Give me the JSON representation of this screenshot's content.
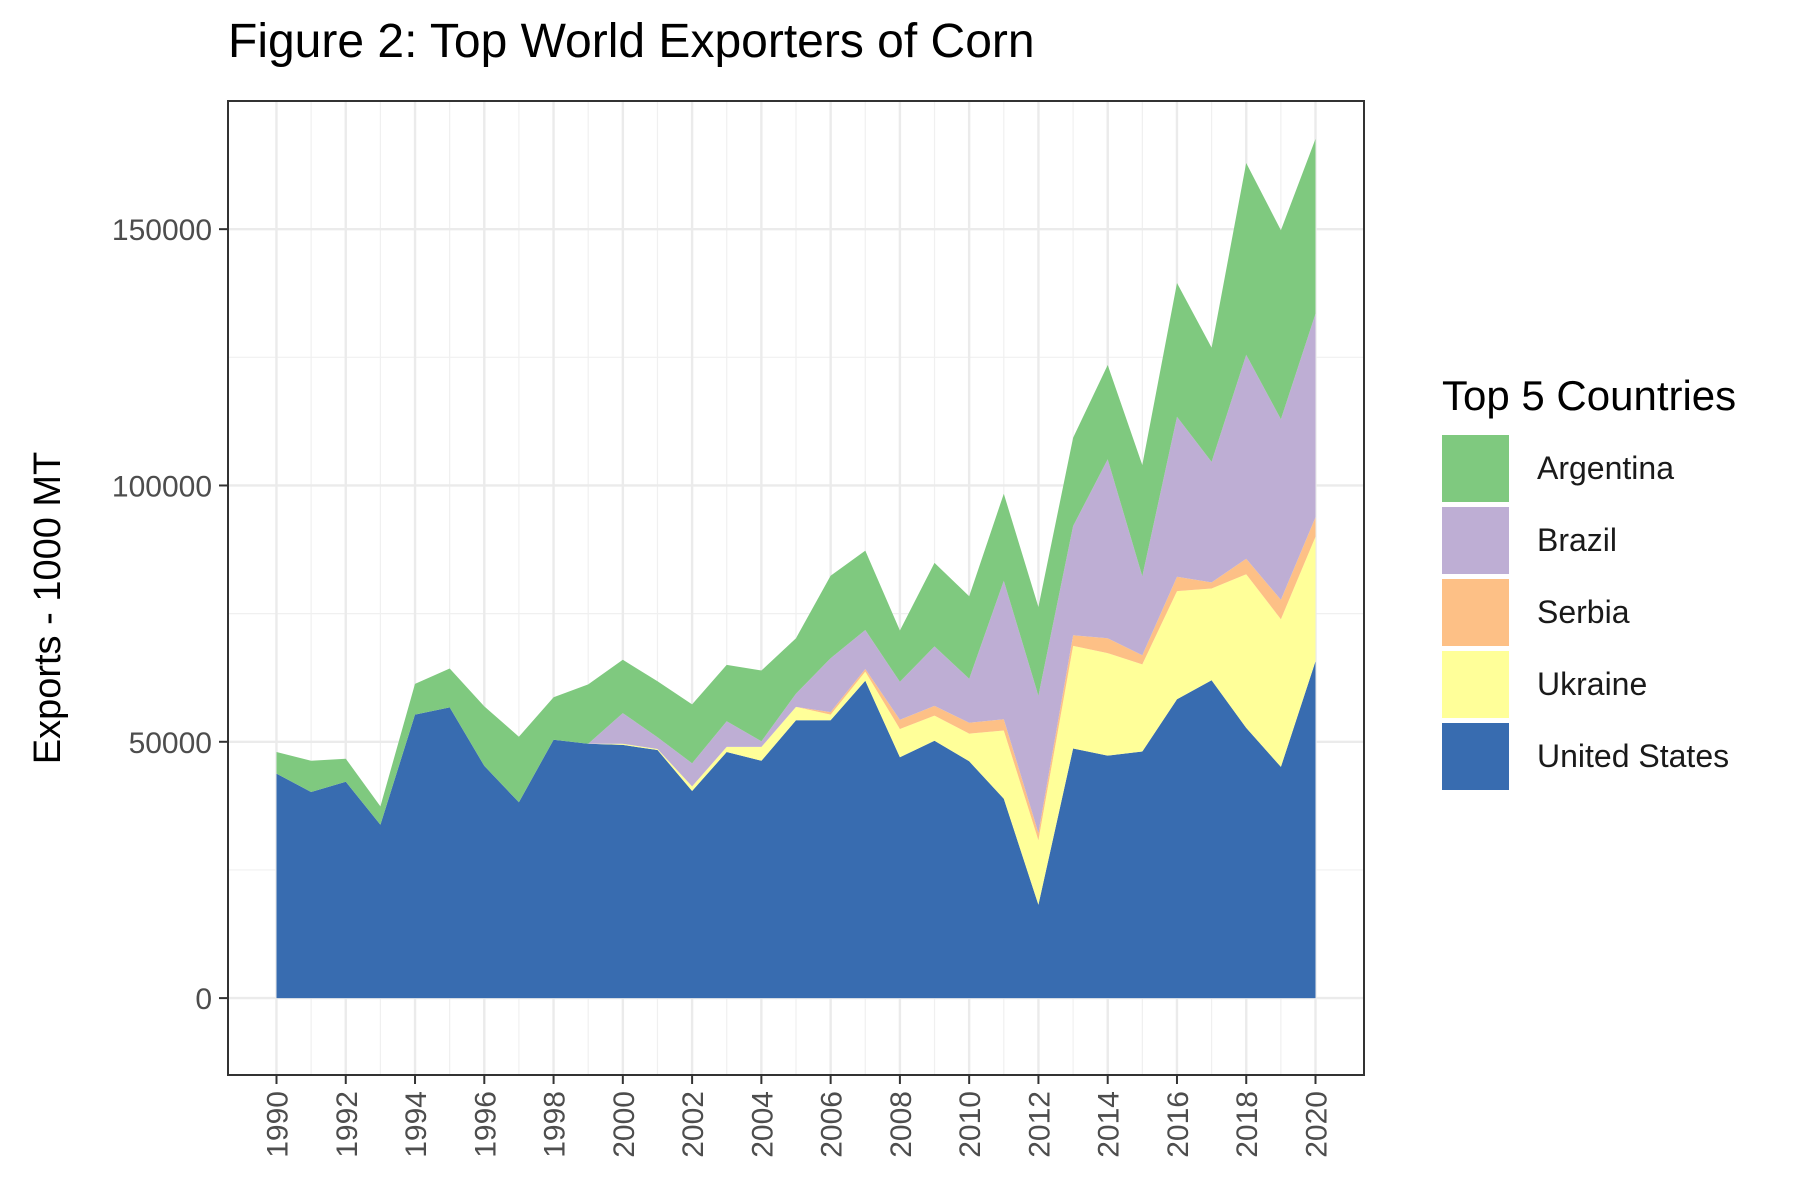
{
  "chart_data": {
    "type": "area",
    "title": "Figure 2: Top World Exporters of Corn",
    "xlabel": "",
    "ylabel": "Exports - 1000 MT",
    "ylim": [
      -15000,
      175000
    ],
    "xlim": [
      1988.6,
      2021.4
    ],
    "yticks": [
      "0",
      "50000",
      "100000",
      "150000"
    ],
    "xticks": [
      "1990",
      "1992",
      "1994",
      "1996",
      "1998",
      "2000",
      "2002",
      "2004",
      "2006",
      "2008",
      "2010",
      "2012",
      "2014",
      "2016",
      "2018",
      "2020"
    ],
    "grid": true,
    "legend_title": "Top 5 Countries",
    "legend_position": "right",
    "stack_order": [
      "United States",
      "Ukraine",
      "Serbia",
      "Brazil",
      "Argentina"
    ],
    "legend_order": [
      "Argentina",
      "Brazil",
      "Serbia",
      "Ukraine",
      "United States"
    ],
    "x": [
      1990,
      1991,
      1992,
      1993,
      1994,
      1995,
      1996,
      1997,
      1998,
      1999,
      2000,
      2001,
      2002,
      2003,
      2004,
      2005,
      2006,
      2007,
      2008,
      2009,
      2010,
      2011,
      2012,
      2013,
      2014,
      2015,
      2016,
      2017,
      2018,
      2019,
      2020
    ],
    "series": [
      {
        "name": "United States",
        "color": "#386CB0",
        "values": [
          43800,
          40200,
          42200,
          33800,
          55300,
          56700,
          45300,
          38200,
          50400,
          49600,
          49400,
          48400,
          40400,
          48000,
          46300,
          54200,
          54200,
          61900,
          47000,
          50200,
          46200,
          38900,
          18200,
          48700,
          47300,
          48100,
          58300,
          62000,
          52700,
          45100,
          65700
        ]
      },
      {
        "name": "Ukraine",
        "color": "#FFFF99",
        "values": [
          0,
          0,
          0,
          0,
          0,
          0,
          0,
          0,
          0,
          0,
          200,
          200,
          900,
          1000,
          2700,
          2600,
          1100,
          1800,
          5500,
          4900,
          5400,
          13300,
          12600,
          20000,
          20000,
          17000,
          21100,
          17900,
          30000,
          28800,
          24300
        ]
      },
      {
        "name": "Serbia",
        "color": "#FDC086",
        "values": [
          0,
          0,
          0,
          0,
          0,
          0,
          0,
          0,
          0,
          0,
          0,
          0,
          0,
          0,
          0,
          0,
          500,
          500,
          1800,
          1900,
          2100,
          2200,
          1400,
          2100,
          2900,
          1800,
          2800,
          1200,
          3000,
          3800,
          3800
        ]
      },
      {
        "name": "Brazil",
        "color": "#BEAED4",
        "values": [
          0,
          0,
          0,
          0,
          0,
          0,
          0,
          0,
          0,
          0,
          6000,
          2300,
          4500,
          5000,
          1100,
          2600,
          10500,
          7600,
          7400,
          11600,
          8600,
          27000,
          26800,
          21300,
          34900,
          15400,
          31200,
          23500,
          39800,
          35200,
          39700
        ]
      },
      {
        "name": "Argentina",
        "color": "#7FC97F",
        "values": [
          4200,
          6100,
          4500,
          3600,
          6000,
          7600,
          11600,
          12800,
          8300,
          11600,
          10400,
          10900,
          11500,
          11000,
          13800,
          10800,
          16100,
          15500,
          10000,
          16300,
          16100,
          17000,
          17300,
          17200,
          18400,
          21700,
          26100,
          22300,
          37400,
          36900,
          34100
        ]
      }
    ]
  }
}
